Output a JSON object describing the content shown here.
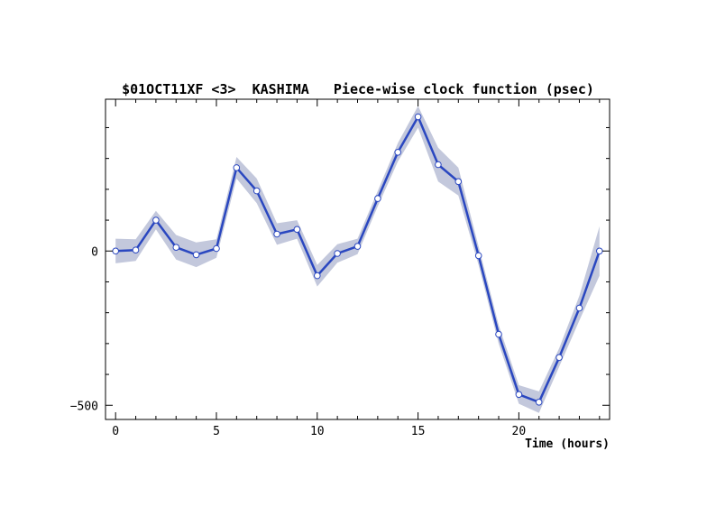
{
  "chart_data": {
    "type": "line",
    "title": "$01OCT11XF <3>  KASHIMA   Piece-wise clock function (psec)",
    "xlabel": "Time (hours)",
    "ylabel": "",
    "xlim": [
      -0.5,
      24.5
    ],
    "ylim": [
      -546,
      492
    ],
    "x_ticks": [
      0,
      5,
      10,
      15,
      20
    ],
    "y_ticks": [
      0,
      -500
    ],
    "x_minor_step": 1,
    "y_minor_step": 100,
    "grid": false,
    "colors": {
      "line": "#2a47c0",
      "band": "#c3c8dc",
      "marker_fill": "#ffffff"
    },
    "series": [
      {
        "x": [
          0,
          1,
          2,
          3,
          4,
          5,
          6,
          7,
          8,
          9,
          10,
          11,
          12,
          13,
          14,
          15,
          16,
          17,
          18,
          19,
          20,
          21,
          22,
          23,
          24
        ],
        "values": [
          0,
          3,
          100,
          12,
          -12,
          8,
          270,
          195,
          55,
          70,
          -80,
          -8,
          15,
          170,
          320,
          435,
          280,
          225,
          -15,
          -270,
          -465,
          -490,
          -345,
          -185,
          0
        ],
        "error": [
          40,
          35,
          30,
          40,
          40,
          30,
          35,
          40,
          35,
          30,
          35,
          30,
          25,
          25,
          30,
          35,
          55,
          45,
          30,
          30,
          30,
          35,
          30,
          40,
          80
        ]
      }
    ]
  }
}
